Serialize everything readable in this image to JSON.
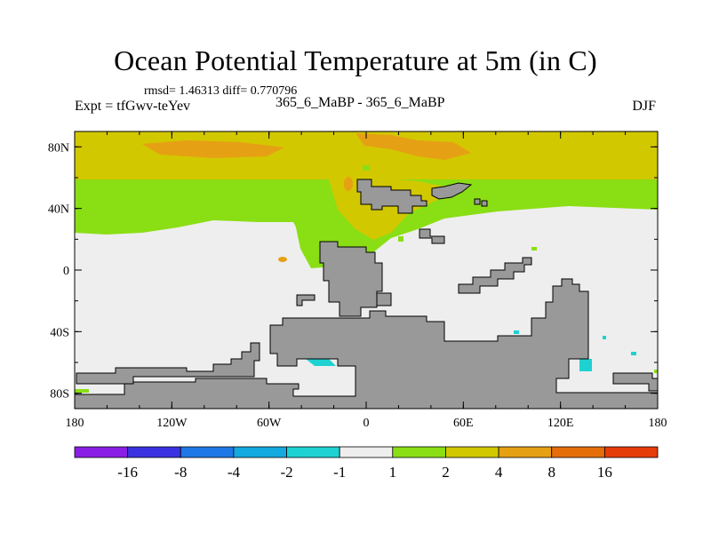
{
  "header": {
    "title": "Ocean Potential Temperature at 5m (in C)",
    "stats": "rmsd= 1.46313 diff= 0.770796",
    "expt": "Expt = tfGwv-teYev",
    "case": "365_6_MaBP - 365_6_MaBP",
    "season": "DJF"
  },
  "chart_data": {
    "type": "heatmap",
    "title": "Ocean Potential Temperature at 5m (in C)",
    "xlabel": "",
    "ylabel": "",
    "xlim": [
      -180,
      180
    ],
    "ylim": [
      -90,
      90
    ],
    "x_ticks": [
      {
        "value": -180,
        "label": "180"
      },
      {
        "value": -120,
        "label": "120W"
      },
      {
        "value": -60,
        "label": "60W"
      },
      {
        "value": 0,
        "label": "0"
      },
      {
        "value": 60,
        "label": "60E"
      },
      {
        "value": 120,
        "label": "120E"
      },
      {
        "value": 180,
        "label": "180"
      }
    ],
    "y_ticks": [
      {
        "value": 80,
        "label": "80N"
      },
      {
        "value": 40,
        "label": "40N"
      },
      {
        "value": 0,
        "label": "0"
      },
      {
        "value": -40,
        "label": "40S"
      },
      {
        "value": -80,
        "label": "80S"
      }
    ],
    "colorbar": {
      "colors": [
        "#8a1ee6",
        "#3a32e0",
        "#1e78e6",
        "#14aae0",
        "#1ed2d2",
        "#eeeeee",
        "#8ade14",
        "#d2c800",
        "#e6a014",
        "#e66e0a",
        "#e63c0a"
      ],
      "labels": [
        "-16",
        "-8",
        "-4",
        "-2",
        "-1",
        "1",
        "2",
        "4",
        "8",
        "16"
      ]
    },
    "regions": [
      {
        "name": "arctic-ochre-band",
        "lon_range": [
          -180,
          180
        ],
        "lat_range": [
          50,
          90
        ],
        "anomaly_range": [
          4,
          8
        ],
        "color": "#d2c800"
      },
      {
        "name": "arctic-orange-patches",
        "lon_range": [
          -120,
          60
        ],
        "lat_range": [
          68,
          84
        ],
        "anomaly_range": [
          8,
          16
        ],
        "color": "#e6a014"
      },
      {
        "name": "midlatitude-green-band",
        "lon_range": [
          -180,
          180
        ],
        "lat_range": [
          20,
          50
        ],
        "anomaly_range": [
          2,
          4
        ],
        "color": "#8ade14"
      },
      {
        "name": "tropics-southern-ocean-neutral",
        "lon_range": [
          -180,
          180
        ],
        "lat_range": [
          -90,
          20
        ],
        "anomaly_range": [
          -1,
          1
        ],
        "color": "#eeeeee"
      },
      {
        "name": "southern-cyan-patches",
        "lon_range": [
          -170,
          -40
        ],
        "lat_range": [
          -85,
          -60
        ],
        "anomaly_range": [
          -2,
          -1
        ],
        "color": "#1ed2d2"
      }
    ]
  }
}
